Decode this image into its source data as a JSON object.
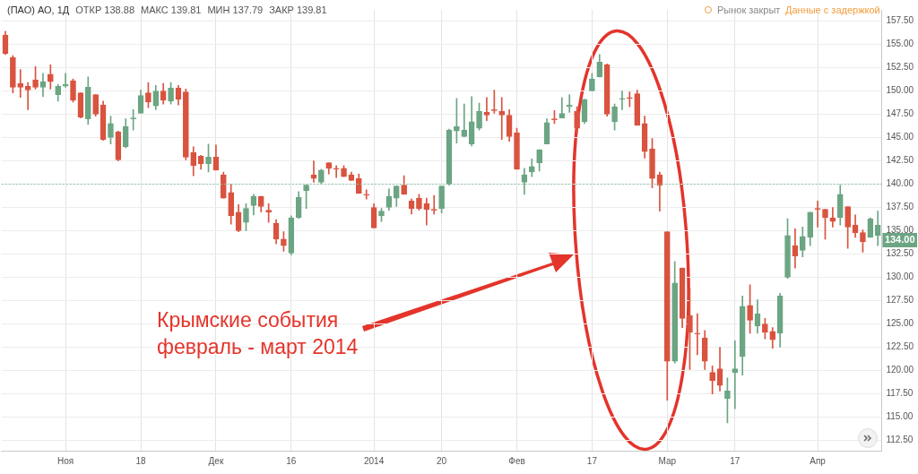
{
  "chart_data": {
    "type": "candlestick",
    "title": "(ПАО) АО, 1Д",
    "categories": [
      null,
      null,
      null,
      null,
      null,
      null,
      null,
      null,
      "Ноя",
      null,
      null,
      null,
      null,
      null,
      null,
      null,
      null,
      null,
      "18",
      null,
      null,
      null,
      null,
      null,
      null,
      null,
      null,
      null,
      "Дек",
      null,
      null,
      null,
      null,
      null,
      null,
      null,
      null,
      null,
      "16",
      null,
      null,
      null,
      null,
      null,
      null,
      null,
      null,
      null,
      null,
      "2014",
      null,
      null,
      null,
      null,
      null,
      null,
      null,
      null,
      "20",
      null,
      null,
      null,
      null,
      null,
      null,
      null,
      null,
      null,
      "Фев",
      null,
      null,
      null,
      null,
      null,
      null,
      null,
      null,
      null,
      "17",
      null,
      null,
      null,
      null,
      null,
      null,
      null,
      null,
      null,
      "Мар",
      null,
      null,
      null,
      null,
      null,
      null,
      null,
      null,
      "17",
      null,
      null,
      null,
      null,
      null,
      null,
      null,
      null,
      null,
      null,
      "Апр",
      null,
      null,
      null,
      null,
      null,
      null,
      null,
      null
    ],
    "ohlc": [
      [
        156.0,
        156.4,
        153.9,
        154.0
      ],
      [
        153.6,
        153.8,
        149.8,
        150.4
      ],
      [
        150.8,
        152.3,
        149.3,
        150.4
      ],
      [
        150.5,
        150.9,
        148.0,
        150.1
      ],
      [
        151.2,
        152.6,
        150.2,
        150.4
      ],
      [
        150.4,
        151.9,
        149.4,
        151.0
      ],
      [
        151.8,
        152.8,
        150.2,
        151.0
      ],
      [
        149.6,
        150.7,
        148.9,
        150.5
      ],
      [
        150.5,
        151.9,
        150.4,
        150.7
      ],
      [
        151.1,
        151.3,
        148.8,
        149.0
      ],
      [
        149.8,
        149.8,
        147.1,
        147.2
      ],
      [
        147.0,
        151.5,
        146.4,
        150.4
      ],
      [
        149.6,
        149.6,
        147.3,
        147.5
      ],
      [
        148.5,
        148.9,
        144.7,
        144.8
      ],
      [
        145.0,
        147.3,
        144.3,
        146.5
      ],
      [
        145.6,
        145.7,
        142.5,
        142.6
      ],
      [
        144.0,
        147.0,
        143.9,
        146.2
      ],
      [
        147.0,
        148.0,
        145.8,
        147.1
      ],
      [
        147.6,
        150.1,
        147.6,
        149.5
      ],
      [
        149.8,
        150.9,
        148.2,
        148.8
      ],
      [
        148.4,
        150.6,
        148.0,
        150.0
      ],
      [
        150.0,
        150.8,
        148.6,
        149.0
      ],
      [
        148.9,
        150.9,
        148.6,
        150.3
      ],
      [
        150.3,
        150.6,
        148.5,
        149.1
      ],
      [
        149.9,
        150.2,
        142.6,
        142.9
      ],
      [
        143.4,
        144.0,
        140.9,
        142.0
      ],
      [
        143.0,
        143.1,
        141.6,
        142.2
      ],
      [
        142.2,
        144.3,
        141.3,
        142.9
      ],
      [
        142.9,
        144.2,
        141.5,
        141.5
      ],
      [
        141.0,
        141.3,
        138.5,
        138.5
      ],
      [
        139.1,
        140.0,
        135.7,
        136.6
      ],
      [
        137.0,
        137.8,
        134.9,
        135.0
      ],
      [
        135.9,
        137.9,
        135.0,
        137.4
      ],
      [
        137.7,
        138.9,
        136.7,
        138.7
      ],
      [
        138.7,
        138.7,
        137.0,
        137.6
      ],
      [
        137.2,
        137.9,
        135.9,
        137.0
      ],
      [
        135.8,
        136.2,
        133.6,
        134.1
      ],
      [
        134.1,
        134.9,
        132.8,
        133.4
      ],
      [
        132.6,
        136.6,
        132.4,
        136.4
      ],
      [
        136.4,
        139.2,
        136.3,
        138.6
      ],
      [
        139.3,
        139.9,
        137.4,
        139.9
      ],
      [
        141.0,
        142.5,
        140.2,
        140.6
      ],
      [
        140.2,
        141.6,
        140.0,
        141.5
      ],
      [
        142.3,
        142.3,
        141.1,
        141.7
      ],
      [
        141.7,
        142.0,
        140.7,
        141.6
      ],
      [
        141.7,
        142.0,
        140.8,
        140.8
      ],
      [
        141.0,
        141.3,
        140.4,
        140.4
      ],
      [
        140.6,
        141.1,
        139.0,
        139.0
      ],
      [
        138.9,
        139.4,
        138.4,
        138.8
      ],
      [
        137.5,
        137.9,
        135.3,
        135.3
      ],
      [
        136.6,
        137.4,
        136.0,
        137.1
      ],
      [
        137.5,
        139.5,
        137.2,
        138.7
      ],
      [
        138.5,
        139.8,
        137.6,
        139.8
      ],
      [
        139.9,
        140.9,
        138.9,
        138.9
      ],
      [
        138.2,
        138.4,
        136.8,
        137.4
      ],
      [
        138.5,
        138.9,
        137.2,
        137.4
      ],
      [
        137.9,
        138.5,
        135.6,
        137.3
      ],
      [
        137.3,
        138.8,
        136.8,
        137.2
      ],
      [
        137.4,
        139.8,
        136.9,
        139.8
      ],
      [
        140.0,
        145.9,
        139.9,
        145.8
      ],
      [
        145.7,
        149.2,
        144.4,
        146.2
      ],
      [
        145.1,
        148.6,
        145.1,
        145.8
      ],
      [
        144.3,
        149.4,
        144.1,
        146.7
      ],
      [
        146.0,
        148.7,
        145.8,
        147.8
      ],
      [
        147.7,
        149.3,
        146.8,
        147.4
      ],
      [
        148.0,
        150.1,
        147.6,
        147.9
      ],
      [
        147.8,
        149.3,
        144.8,
        147.4
      ],
      [
        147.4,
        148.0,
        144.6,
        145.1
      ],
      [
        145.5,
        146.0,
        141.6,
        141.6
      ],
      [
        140.2,
        141.7,
        138.9,
        141.0
      ],
      [
        141.3,
        142.7,
        140.8,
        141.9
      ],
      [
        142.3,
        143.7,
        141.4,
        143.7
      ],
      [
        144.3,
        147.0,
        144.3,
        146.6
      ],
      [
        147.0,
        147.9,
        146.5,
        146.9
      ],
      [
        147.1,
        149.3,
        147.1,
        147.6
      ],
      [
        148.3,
        149.6,
        147.7,
        148.5
      ],
      [
        147.8,
        148.3,
        145.5,
        146.0
      ],
      [
        146.7,
        149.1,
        146.5,
        149.1
      ],
      [
        150.0,
        151.9,
        150.0,
        151.3
      ],
      [
        151.5,
        153.9,
        151.5,
        153.1
      ],
      [
        152.8,
        152.9,
        147.3,
        147.5
      ],
      [
        146.7,
        148.6,
        145.8,
        148.3
      ],
      [
        149.1,
        150.0,
        148.0,
        149.2
      ],
      [
        149.3,
        149.9,
        148.3,
        149.2
      ],
      [
        149.7,
        150.1,
        146.3,
        146.3
      ],
      [
        146.5,
        147.3,
        142.8,
        143.5
      ],
      [
        143.8,
        144.9,
        139.6,
        140.6
      ],
      [
        141.0,
        141.3,
        137.1,
        139.9
      ],
      [
        134.9,
        134.9,
        116.8,
        121.0
      ],
      [
        121.0,
        131.7,
        120.8,
        129.4
      ],
      [
        131.0,
        131.0,
        124.6,
        125.6
      ],
      [
        125.9,
        128.8,
        120.1,
        124.1
      ],
      [
        124.0,
        126.1,
        121.7,
        123.9
      ],
      [
        123.5,
        124.3,
        120.1,
        121.0
      ],
      [
        119.8,
        120.5,
        117.5,
        118.9
      ],
      [
        120.2,
        122.5,
        117.8,
        118.4
      ],
      [
        117.0,
        119.2,
        114.4,
        117.8
      ],
      [
        119.8,
        123.2,
        115.9,
        120.2
      ],
      [
        121.5,
        128.0,
        119.5,
        126.9
      ],
      [
        127.0,
        129.2,
        124.0,
        125.4
      ],
      [
        124.8,
        127.6,
        124.0,
        126.1
      ],
      [
        125.0,
        125.6,
        123.4,
        124.1
      ],
      [
        124.2,
        124.6,
        122.4,
        123.3
      ],
      [
        124.0,
        128.3,
        122.5,
        128.0
      ],
      [
        130.0,
        136.3,
        129.9,
        134.5
      ],
      [
        133.4,
        135.2,
        131.0,
        132.3
      ],
      [
        132.9,
        135.4,
        132.2,
        134.4
      ],
      [
        134.3,
        137.0,
        133.4,
        137.0
      ],
      [
        137.4,
        138.2,
        135.4,
        137.3
      ],
      [
        137.3,
        137.3,
        134.1,
        136.4
      ],
      [
        136.4,
        137.5,
        135.4,
        136.0
      ],
      [
        136.4,
        139.9,
        135.6,
        138.9
      ],
      [
        137.6,
        137.6,
        133.1,
        135.4
      ],
      [
        135.6,
        136.7,
        134.3,
        134.8
      ],
      [
        134.8,
        135.1,
        132.7,
        133.8
      ],
      [
        134.3,
        136.4,
        134.3,
        136.3
      ],
      [
        134.5,
        137.1,
        133.4,
        135.6
      ]
    ],
    "colors": [
      "#d9533f",
      "#d9533f",
      "#d9533f",
      "#d9533f",
      "#d9533f",
      "#6ba583",
      "#d9533f",
      "#6ba583",
      "#6ba583",
      "#d9533f",
      "#d9533f",
      "#6ba583",
      "#d9533f",
      "#d9533f",
      "#6ba583",
      "#d9533f",
      "#6ba583",
      "#6ba583",
      "#6ba583",
      "#d9533f",
      "#6ba583",
      "#d9533f",
      "#6ba583",
      "#d9533f",
      "#d9533f",
      "#d9533f",
      "#d9533f",
      "#6ba583",
      "#d9533f",
      "#d9533f",
      "#d9533f",
      "#d9533f",
      "#6ba583",
      "#6ba583",
      "#d9533f",
      "#d9533f",
      "#d9533f",
      "#d9533f",
      "#6ba583",
      "#6ba583",
      "#6ba583",
      "#d9533f",
      "#6ba583",
      "#d9533f",
      "#d9533f",
      "#d9533f",
      "#d9533f",
      "#d9533f",
      "#d9533f",
      "#d9533f",
      "#6ba583",
      "#6ba583",
      "#6ba583",
      "#d9533f",
      "#d9533f",
      "#d9533f",
      "#d9533f",
      "#d9533f",
      "#6ba583",
      "#6ba583",
      "#6ba583",
      "#6ba583",
      "#6ba583",
      "#6ba583",
      "#d9533f",
      "#d9533f",
      "#d9533f",
      "#d9533f",
      "#d9533f",
      "#6ba583",
      "#6ba583",
      "#6ba583",
      "#6ba583",
      "#d9533f",
      "#6ba583",
      "#6ba583",
      "#d9533f",
      "#6ba583",
      "#6ba583",
      "#6ba583",
      "#d9533f",
      "#6ba583",
      "#6ba583",
      "#d9533f",
      "#d9533f",
      "#d9533f",
      "#d9533f",
      "#d9533f",
      "#d9533f",
      "#6ba583",
      "#d9533f",
      "#d9533f",
      "#d9533f",
      "#d9533f",
      "#d9533f",
      "#d9533f",
      "#6ba583",
      "#6ba583",
      "#6ba583",
      "#d9533f",
      "#6ba583",
      "#d9533f",
      "#d9533f",
      "#6ba583",
      "#6ba583",
      "#d9533f",
      "#6ba583",
      "#6ba583",
      "#d9533f",
      "#d9533f",
      "#d9533f",
      "#6ba583",
      "#d9533f",
      "#d9533f",
      "#d9533f",
      "#6ba583",
      "#6ba583"
    ],
    "ylim": [
      111.4,
      158.7
    ],
    "yticks": [
      {
        "value": 112.5,
        "label": "112.50"
      },
      {
        "value": 115,
        "label": "115.00"
      },
      {
        "value": 117.5,
        "label": "117.50"
      },
      {
        "value": 120,
        "label": "120.00"
      },
      {
        "value": 122.5,
        "label": "122.50"
      },
      {
        "value": 125,
        "label": "125.00"
      },
      {
        "value": 127.5,
        "label": "127.50"
      },
      {
        "value": 130,
        "label": "130.00"
      },
      {
        "value": 132.5,
        "label": "132.50"
      },
      {
        "value": 135,
        "label": "135.00"
      },
      {
        "value": 137.5,
        "label": "137.50"
      },
      {
        "value": 140,
        "label": "140.00"
      },
      {
        "value": 142.5,
        "label": "142.50"
      },
      {
        "value": 145,
        "label": "145.00"
      },
      {
        "value": 147.5,
        "label": "147.50"
      },
      {
        "value": 150,
        "label": "150.00"
      },
      {
        "value": 152.5,
        "label": "152.50"
      },
      {
        "value": 155,
        "label": "155.00"
      },
      {
        "value": 157.5,
        "label": "157.50"
      }
    ],
    "grid": true,
    "ref_lines": [
      {
        "axis": "y",
        "value": 140,
        "color": "#8cc4a8",
        "line_style": "dotted"
      }
    ],
    "annotations": [
      "ОТКР 138.88",
      "МАКС 139.81",
      "МИН 137.79",
      "ЗАКР 139.81",
      "Рынок закрыт",
      "Данные с задержкой",
      {
        "text": "134.00",
        "y": 134
      },
      "Крымские события\nфевраль - март 2014"
    ]
  }
}
